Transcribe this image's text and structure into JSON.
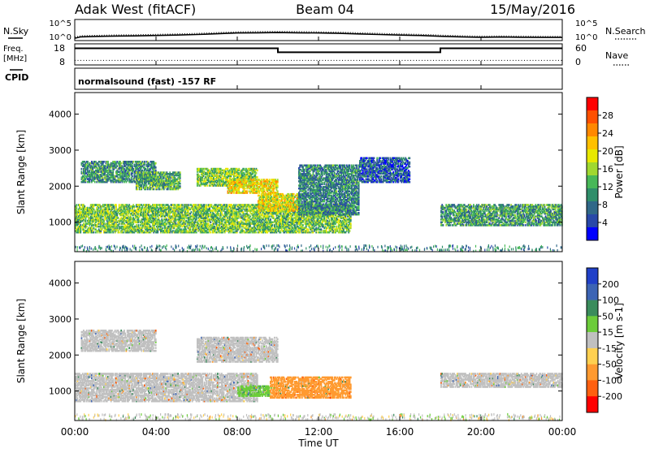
{
  "header": {
    "station": "Adak West (fitACF)",
    "beam": "Beam 04",
    "date": "15/May/2016"
  },
  "top_panels": {
    "nsky_label": "N.Sky",
    "nsearch_label": "N.Search",
    "noise_ticks": [
      "10^5",
      "10^0"
    ],
    "freq_label_1": "Freq.",
    "freq_label_2": "[MHz]",
    "freq_ticks": [
      "18",
      "8"
    ],
    "nave_label": "Nave",
    "nave_ticks": [
      "60",
      "0"
    ],
    "cpid_label": "CPID",
    "cpid_text": "normalsound (fast) -157 RF"
  },
  "chart_data": [
    {
      "type": "line",
      "title": "",
      "xlabel": "",
      "ylabel": "N.Sky",
      "y2label": "N.Search",
      "x_hours": [
        0,
        0.3,
        1,
        2,
        3,
        4,
        5,
        6,
        7,
        8,
        9,
        10,
        11,
        12,
        13,
        14,
        15,
        16,
        17,
        18,
        19,
        20,
        21,
        22,
        23,
        24
      ],
      "log_noise_fraction": [
        0.08,
        0.15,
        0.17,
        0.19,
        0.2,
        0.22,
        0.24,
        0.27,
        0.31,
        0.35,
        0.36,
        0.37,
        0.36,
        0.35,
        0.33,
        0.3,
        0.27,
        0.24,
        0.22,
        0.18,
        0.15,
        0.13,
        0.14,
        0.13,
        0.12,
        0.12
      ]
    },
    {
      "type": "line",
      "title": "",
      "ylabel": "Freq. [MHz]",
      "y2label": "Nave",
      "ylim": [
        8,
        18
      ],
      "freq_steps": [
        {
          "x0": 0,
          "x1": 10,
          "y": 15.9
        },
        {
          "x0": 10,
          "x1": 18,
          "y": 14.0
        },
        {
          "x0": 18,
          "x1": 24,
          "y": 15.9
        }
      ],
      "nave_level": 13
    },
    {
      "type": "heatmap",
      "title": "",
      "xlabel": "",
      "ylabel": "Slant Range [km]",
      "xlim": [
        0,
        24
      ],
      "ylim": [
        180,
        4600
      ],
      "yticks": [
        1000,
        2000,
        3000,
        4000
      ],
      "colorbar_label": "Power [dB]",
      "colorbar_ticks": [
        "28",
        "24",
        "20",
        "16",
        "12",
        "8",
        "4"
      ],
      "colorbar_colors": [
        "#ff0000",
        "#ff5000",
        "#ff8800",
        "#ffc000",
        "#e8e800",
        "#a0d830",
        "#48b858",
        "#2f8e6a",
        "#306888",
        "#2848a8",
        "#0000ff"
      ],
      "bands": [
        {
          "x0": 0.0,
          "x1": 13.6,
          "y0": 700,
          "y1": 1500,
          "value": 14
        },
        {
          "x0": 0.3,
          "x1": 4.0,
          "y0": 2100,
          "y1": 2700,
          "value": 10
        },
        {
          "x0": 3.0,
          "x1": 5.2,
          "y0": 1900,
          "y1": 2400,
          "value": 12
        },
        {
          "x0": 6.0,
          "x1": 9.0,
          "y0": 2000,
          "y1": 2500,
          "value": 15
        },
        {
          "x0": 7.5,
          "x1": 10.0,
          "y0": 1800,
          "y1": 2200,
          "value": 20
        },
        {
          "x0": 9.0,
          "x1": 11.0,
          "y0": 1300,
          "y1": 1800,
          "value": 19
        },
        {
          "x0": 11.0,
          "x1": 14.0,
          "y0": 1200,
          "y1": 2600,
          "value": 9
        },
        {
          "x0": 14.0,
          "x1": 16.5,
          "y0": 2100,
          "y1": 2800,
          "value": 6
        },
        {
          "x0": 18.0,
          "x1": 24.0,
          "y0": 900,
          "y1": 1500,
          "value": 11
        }
      ]
    },
    {
      "type": "heatmap",
      "title": "",
      "xlabel": "Time UT",
      "ylabel": "Slant Range [km]",
      "xlim": [
        0,
        24
      ],
      "ylim": [
        180,
        4600
      ],
      "yticks": [
        1000,
        2000,
        3000,
        4000
      ],
      "xticks": [
        "00:00",
        "04:00",
        "08:00",
        "12:00",
        "16:00",
        "20:00",
        "00:00"
      ],
      "colorbar_label": "Velocity [m s-1]",
      "colorbar_ticks": [
        "200",
        "100",
        "50",
        "15",
        "-15",
        "-50",
        "-100",
        "-200"
      ],
      "colorbar_colors": [
        "#2040c8",
        "#3c64b4",
        "#3a8c5c",
        "#6ccc3a",
        "#c0c0c0",
        "#ffd050",
        "#ff9a30",
        "#ff6010",
        "#ff0000"
      ],
      "bands": [
        {
          "x0": 0.0,
          "x1": 9.0,
          "y0": 700,
          "y1": 1500,
          "value": 0
        },
        {
          "x0": 0.3,
          "x1": 4.0,
          "y0": 2100,
          "y1": 2700,
          "value": 0
        },
        {
          "x0": 6.0,
          "x1": 10.0,
          "y0": 1800,
          "y1": 2500,
          "value": 0
        },
        {
          "x0": 8.0,
          "x1": 9.6,
          "y0": 850,
          "y1": 1150,
          "value": 40
        },
        {
          "x0": 9.6,
          "x1": 13.6,
          "y0": 800,
          "y1": 1400,
          "value": -60
        },
        {
          "x0": 18.0,
          "x1": 24.0,
          "y0": 1100,
          "y1": 1500,
          "value": 0
        }
      ]
    }
  ]
}
